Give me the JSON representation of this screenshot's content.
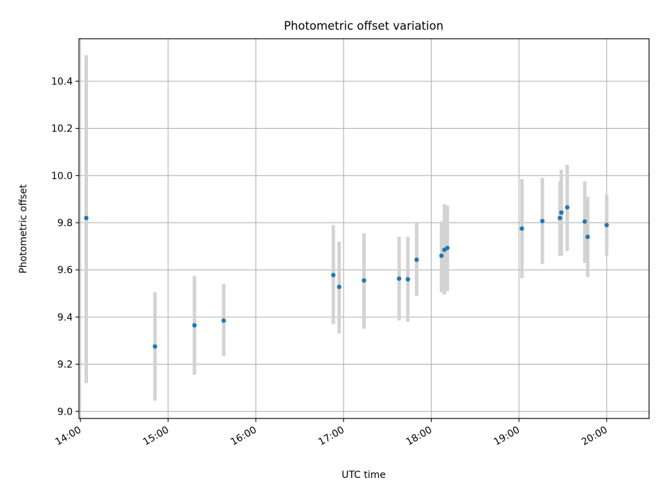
{
  "chart_data": {
    "type": "scatter",
    "title": "Photometric offset variation",
    "xlabel": "UTC time",
    "ylabel": "Photometric offset",
    "x_tick_labels": [
      "14:00",
      "15:00",
      "16:00",
      "17:00",
      "18:00",
      "19:00",
      "20:00"
    ],
    "y_tick_labels": [
      "9.0",
      "9.2",
      "9.4",
      "9.6",
      "9.8",
      "10.0",
      "10.2",
      "10.4"
    ],
    "xlim": [
      "13:59",
      "20:29"
    ],
    "ylim": [
      8.97,
      10.58
    ],
    "grid": true,
    "point_color": "#1f77b4",
    "errorbar_color": "#d3d3d3",
    "points": [
      {
        "time": "14:04",
        "value": 9.82,
        "lower": 9.12,
        "upper": 10.51
      },
      {
        "time": "14:51",
        "value": 9.275,
        "lower": 9.045,
        "upper": 9.505
      },
      {
        "time": "15:18",
        "value": 9.365,
        "lower": 9.155,
        "upper": 9.575
      },
      {
        "time": "15:38",
        "value": 9.385,
        "lower": 9.235,
        "upper": 9.54
      },
      {
        "time": "16:53",
        "value": 9.578,
        "lower": 9.37,
        "upper": 9.79
      },
      {
        "time": "16:57",
        "value": 9.528,
        "lower": 9.33,
        "upper": 9.72
      },
      {
        "time": "17:14",
        "value": 9.555,
        "lower": 9.35,
        "upper": 9.755
      },
      {
        "time": "17:38",
        "value": 9.563,
        "lower": 9.385,
        "upper": 9.74
      },
      {
        "time": "17:44",
        "value": 9.56,
        "lower": 9.38,
        "upper": 9.74
      },
      {
        "time": "17:50",
        "value": 9.643,
        "lower": 9.49,
        "upper": 9.8
      },
      {
        "time": "18:07",
        "value": 9.66,
        "lower": 9.505,
        "upper": 9.805
      },
      {
        "time": "18:09",
        "value": 9.685,
        "lower": 9.495,
        "upper": 9.878
      },
      {
        "time": "18:11",
        "value": 9.693,
        "lower": 9.51,
        "upper": 9.873
      },
      {
        "time": "19:02",
        "value": 9.775,
        "lower": 9.565,
        "upper": 9.985
      },
      {
        "time": "19:16",
        "value": 9.807,
        "lower": 9.625,
        "upper": 9.99
      },
      {
        "time": "19:28",
        "value": 9.82,
        "lower": 9.66,
        "upper": 9.975
      },
      {
        "time": "19:29",
        "value": 9.843,
        "lower": 9.66,
        "upper": 10.025
      },
      {
        "time": "19:33",
        "value": 9.865,
        "lower": 9.68,
        "upper": 10.045
      },
      {
        "time": "19:45",
        "value": 9.805,
        "lower": 9.63,
        "upper": 9.975
      },
      {
        "time": "19:47",
        "value": 9.74,
        "lower": 9.57,
        "upper": 9.91
      },
      {
        "time": "20:00",
        "value": 9.79,
        "lower": 9.66,
        "upper": 9.92
      }
    ]
  }
}
